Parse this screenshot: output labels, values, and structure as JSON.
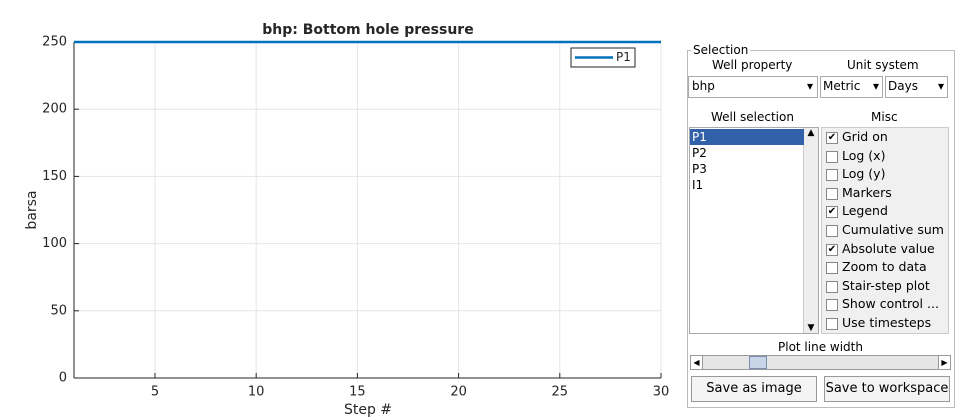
{
  "chart_data": {
    "type": "line",
    "title": "bhp: Bottom hole pressure",
    "xlabel": "Step #",
    "ylabel": "barsa",
    "x": [
      1,
      2,
      3,
      4,
      5,
      6,
      7,
      8,
      9,
      10,
      11,
      12,
      13,
      14,
      15,
      16,
      17,
      18,
      19,
      20,
      21,
      22,
      23,
      24,
      25,
      26,
      27,
      28,
      29,
      30
    ],
    "series": [
      {
        "name": "P1",
        "color": "#0072bd",
        "values": [
          250,
          250,
          250,
          250,
          250,
          250,
          250,
          250,
          250,
          250,
          250,
          250,
          250,
          250,
          250,
          250,
          250,
          250,
          250,
          250,
          250,
          250,
          250,
          250,
          250,
          250,
          250,
          250,
          250,
          250
        ]
      }
    ],
    "xlim": [
      1,
      30
    ],
    "xticks": [
      5,
      10,
      15,
      20,
      25,
      30
    ],
    "ylim": [
      0,
      250
    ],
    "yticks": [
      0,
      50,
      100,
      150,
      200,
      250
    ],
    "grid": true,
    "legend": "upper right"
  },
  "panel": {
    "title": "Selection",
    "well_property": {
      "label": "Well property",
      "value": "bhp"
    },
    "unit_system": {
      "label": "Unit system",
      "values": [
        "Metric",
        "Days"
      ]
    },
    "well_selection": {
      "label": "Well selection",
      "items": [
        "P1",
        "P2",
        "P3",
        "I1"
      ],
      "selected": 0
    },
    "misc": {
      "label": "Misc",
      "options": [
        {
          "label": "Grid on",
          "checked": true
        },
        {
          "label": "Log (x)",
          "checked": false
        },
        {
          "label": "Log (y)",
          "checked": false
        },
        {
          "label": "Markers",
          "checked": false
        },
        {
          "label": "Legend",
          "checked": true
        },
        {
          "label": "Cumulative sum",
          "checked": false
        },
        {
          "label": "Absolute value",
          "checked": true
        },
        {
          "label": "Zoom to data",
          "checked": false
        },
        {
          "label": "Stair-step plot",
          "checked": false
        },
        {
          "label": "Show control ...",
          "checked": false
        },
        {
          "label": "Use timesteps",
          "checked": false
        }
      ]
    },
    "slider_label": "Plot line width",
    "buttons": [
      "Save as image",
      "Save to workspace"
    ]
  }
}
